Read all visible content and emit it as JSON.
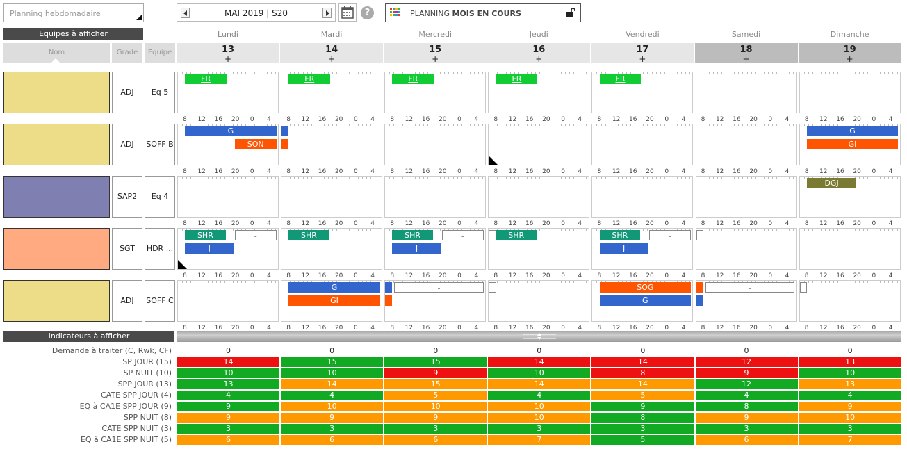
{
  "view_select": {
    "placeholder": "Planning hebdomadaire"
  },
  "nav": {
    "label": "MAI 2019 | S20"
  },
  "planning_button": {
    "prefix": "PLANNING",
    "bold": "MOIS EN COURS"
  },
  "teams_header": "Equipes à afficher",
  "columns": {
    "name": "Nom",
    "grade": "Grade",
    "team": "Equipe"
  },
  "days": [
    {
      "name": "Lundi",
      "num": "13",
      "plus": "+",
      "weekend": false
    },
    {
      "name": "Mardi",
      "num": "14",
      "plus": "+",
      "weekend": false
    },
    {
      "name": "Mercredi",
      "num": "15",
      "plus": "+",
      "weekend": false
    },
    {
      "name": "Jeudi",
      "num": "16",
      "plus": "+",
      "weekend": false
    },
    {
      "name": "Vendredi",
      "num": "17",
      "plus": "+",
      "weekend": false
    },
    {
      "name": "Samedi",
      "num": "18",
      "plus": "+",
      "weekend": true
    },
    {
      "name": "Dimanche",
      "num": "19",
      "plus": "+",
      "weekend": true
    }
  ],
  "hour_labels": [
    "8",
    "12",
    "16",
    "20",
    "0",
    "4"
  ],
  "colors": {
    "green": "#11cc33",
    "blue": "#3366cc",
    "orange": "#ff5500",
    "teal": "#119977",
    "olive": "#7a7a33",
    "ind_red": "#ee1111",
    "ind_green": "#11aa22",
    "ind_orange": "#ff9900"
  },
  "people": [
    {
      "color": "#eedd88",
      "grade": "ADJ",
      "team": "Eq 5"
    },
    {
      "color": "#eedd88",
      "grade": "ADJ",
      "team": "SOFF B"
    },
    {
      "color": "#7f7fb2",
      "grade": "SAP2",
      "team": "Eq 4"
    },
    {
      "color": "#ffaa80",
      "grade": "SGT",
      "team": "HDR ..."
    },
    {
      "color": "#eedd88",
      "grade": "ADJ",
      "team": "SOFF C"
    }
  ],
  "shifts": [
    {
      "row": 0,
      "day": 0,
      "line": 0,
      "start": 0.07,
      "end": 0.48,
      "label": "FR",
      "color": "green",
      "underline": true
    },
    {
      "row": 0,
      "day": 1,
      "line": 0,
      "start": 0.07,
      "end": 0.48,
      "label": "FR",
      "color": "green",
      "underline": true
    },
    {
      "row": 0,
      "day": 2,
      "line": 0,
      "start": 0.07,
      "end": 0.48,
      "label": "FR",
      "color": "green",
      "underline": true
    },
    {
      "row": 0,
      "day": 3,
      "line": 0,
      "start": 0.07,
      "end": 0.48,
      "label": "FR",
      "color": "green",
      "underline": true
    },
    {
      "row": 0,
      "day": 4,
      "line": 0,
      "start": 0.07,
      "end": 0.48,
      "label": "FR",
      "color": "green",
      "underline": true
    },
    {
      "row": 1,
      "day": 0,
      "line": 0,
      "start": 0.07,
      "end": 0.97,
      "label": "G",
      "color": "blue"
    },
    {
      "row": 1,
      "day": 0,
      "line": 1,
      "start": 0.56,
      "end": 0.97,
      "label": "SON",
      "color": "orange"
    },
    {
      "row": 1,
      "day": 1,
      "line": 0,
      "start": 0.0,
      "end": 0.07,
      "label": "",
      "color": "blue"
    },
    {
      "row": 1,
      "day": 1,
      "line": 1,
      "start": 0.0,
      "end": 0.07,
      "label": "",
      "color": "orange"
    },
    {
      "row": 1,
      "day": 6,
      "line": 0,
      "start": 0.07,
      "end": 0.97,
      "label": "G",
      "color": "blue"
    },
    {
      "row": 1,
      "day": 6,
      "line": 1,
      "start": 0.07,
      "end": 0.97,
      "label": "GI",
      "color": "orange"
    },
    {
      "row": 2,
      "day": 6,
      "line": 0,
      "start": 0.07,
      "end": 0.56,
      "label": "DGJ",
      "color": "olive"
    },
    {
      "row": 3,
      "day": 0,
      "line": 0,
      "start": 0.07,
      "end": 0.47,
      "label": "SHR",
      "color": "teal"
    },
    {
      "row": 3,
      "day": 0,
      "line": 0,
      "start": 0.56,
      "end": 0.97,
      "label": "-",
      "color": "empty"
    },
    {
      "row": 3,
      "day": 0,
      "line": 1,
      "start": 0.07,
      "end": 0.55,
      "label": "J",
      "color": "blue"
    },
    {
      "row": 3,
      "day": 1,
      "line": 0,
      "start": 0.07,
      "end": 0.47,
      "label": "SHR",
      "color": "teal"
    },
    {
      "row": 3,
      "day": 2,
      "line": 0,
      "start": 0.07,
      "end": 0.47,
      "label": "SHR",
      "color": "teal"
    },
    {
      "row": 3,
      "day": 2,
      "line": 0,
      "start": 0.56,
      "end": 0.97,
      "label": "-",
      "color": "empty"
    },
    {
      "row": 3,
      "day": 2,
      "line": 1,
      "start": 0.07,
      "end": 0.55,
      "label": "J",
      "color": "blue"
    },
    {
      "row": 3,
      "day": 3,
      "line": 0,
      "start": 0.0,
      "end": 0.07,
      "label": "",
      "color": "empty"
    },
    {
      "row": 3,
      "day": 3,
      "line": 0,
      "start": 0.07,
      "end": 0.47,
      "label": "SHR",
      "color": "teal"
    },
    {
      "row": 3,
      "day": 4,
      "line": 0,
      "start": 0.07,
      "end": 0.47,
      "label": "SHR",
      "color": "teal"
    },
    {
      "row": 3,
      "day": 4,
      "line": 0,
      "start": 0.56,
      "end": 0.97,
      "label": "-",
      "color": "empty"
    },
    {
      "row": 3,
      "day": 4,
      "line": 1,
      "start": 0.07,
      "end": 0.55,
      "label": "J",
      "color": "blue"
    },
    {
      "row": 3,
      "day": 5,
      "line": 0,
      "start": 0.0,
      "end": 0.07,
      "label": "",
      "color": "empty"
    },
    {
      "row": 4,
      "day": 1,
      "line": 0,
      "start": 0.07,
      "end": 0.97,
      "label": "G",
      "color": "blue"
    },
    {
      "row": 4,
      "day": 1,
      "line": 1,
      "start": 0.07,
      "end": 0.97,
      "label": "GI",
      "color": "orange"
    },
    {
      "row": 4,
      "day": 2,
      "line": 0,
      "start": 0.0,
      "end": 0.07,
      "label": "",
      "color": "blue"
    },
    {
      "row": 4,
      "day": 2,
      "line": 0,
      "start": 0.09,
      "end": 0.97,
      "label": "-",
      "color": "empty"
    },
    {
      "row": 4,
      "day": 2,
      "line": 1,
      "start": 0.0,
      "end": 0.07,
      "label": "",
      "color": "orange"
    },
    {
      "row": 4,
      "day": 3,
      "line": 0,
      "start": 0.0,
      "end": 0.07,
      "label": "",
      "color": "empty"
    },
    {
      "row": 4,
      "day": 4,
      "line": 0,
      "start": 0.07,
      "end": 0.97,
      "label": "SOG",
      "color": "orange"
    },
    {
      "row": 4,
      "day": 4,
      "line": 1,
      "start": 0.07,
      "end": 0.97,
      "label": "G",
      "color": "blue",
      "underline": true
    },
    {
      "row": 4,
      "day": 5,
      "line": 0,
      "start": 0.0,
      "end": 0.07,
      "label": "",
      "color": "orange"
    },
    {
      "row": 4,
      "day": 5,
      "line": 0,
      "start": 0.09,
      "end": 0.97,
      "label": "-",
      "color": "empty"
    },
    {
      "row": 4,
      "day": 5,
      "line": 1,
      "start": 0.0,
      "end": 0.07,
      "label": "",
      "color": "blue"
    },
    {
      "row": 4,
      "day": 6,
      "line": 0,
      "start": 0.0,
      "end": 0.07,
      "label": "",
      "color": "empty"
    }
  ],
  "corner_marks": [
    {
      "row": 1,
      "day": 3
    },
    {
      "row": 3,
      "day": 0
    }
  ],
  "indicators_header": "Indicateurs à afficher",
  "indicators": [
    {
      "label": "Demande à traiter (C, Rwk, CF)",
      "plain": true,
      "values": [
        "0",
        "0",
        "0",
        "0",
        "0",
        "0",
        "0"
      ],
      "colors": []
    },
    {
      "label": "SP JOUR (15)",
      "values": [
        "14",
        "15",
        "15",
        "14",
        "14",
        "12",
        "13"
      ],
      "colors": [
        "r",
        "g",
        "g",
        "r",
        "r",
        "r",
        "r"
      ]
    },
    {
      "label": "SP NUIT (10)",
      "values": [
        "10",
        "10",
        "9",
        "10",
        "8",
        "9",
        "10"
      ],
      "colors": [
        "g",
        "g",
        "r",
        "g",
        "r",
        "r",
        "g"
      ]
    },
    {
      "label": "SPP JOUR (13)",
      "values": [
        "13",
        "14",
        "15",
        "14",
        "14",
        "12",
        "13"
      ],
      "colors": [
        "g",
        "o",
        "o",
        "o",
        "o",
        "g",
        "o"
      ]
    },
    {
      "label": "CATE SPP JOUR (4)",
      "values": [
        "4",
        "4",
        "5",
        "4",
        "5",
        "4",
        "4"
      ],
      "colors": [
        "g",
        "g",
        "o",
        "g",
        "o",
        "g",
        "g"
      ]
    },
    {
      "label": "EQ à CA1E SPP JOUR (9)",
      "values": [
        "9",
        "10",
        "10",
        "10",
        "9",
        "8",
        "9"
      ],
      "colors": [
        "g",
        "o",
        "o",
        "o",
        "g",
        "g",
        "o"
      ]
    },
    {
      "label": "SPP NUIT (8)",
      "values": [
        "9",
        "9",
        "9",
        "10",
        "8",
        "9",
        "10"
      ],
      "colors": [
        "o",
        "o",
        "o",
        "o",
        "g",
        "o",
        "o"
      ]
    },
    {
      "label": "CATE SPP NUIT (3)",
      "values": [
        "3",
        "3",
        "3",
        "3",
        "3",
        "3",
        "3"
      ],
      "colors": [
        "g",
        "g",
        "g",
        "g",
        "g",
        "g",
        "g"
      ]
    },
    {
      "label": "EQ à CA1E SPP NUIT (5)",
      "values": [
        "6",
        "6",
        "6",
        "7",
        "5",
        "6",
        "7"
      ],
      "colors": [
        "o",
        "o",
        "o",
        "o",
        "g",
        "o",
        "o"
      ]
    }
  ]
}
